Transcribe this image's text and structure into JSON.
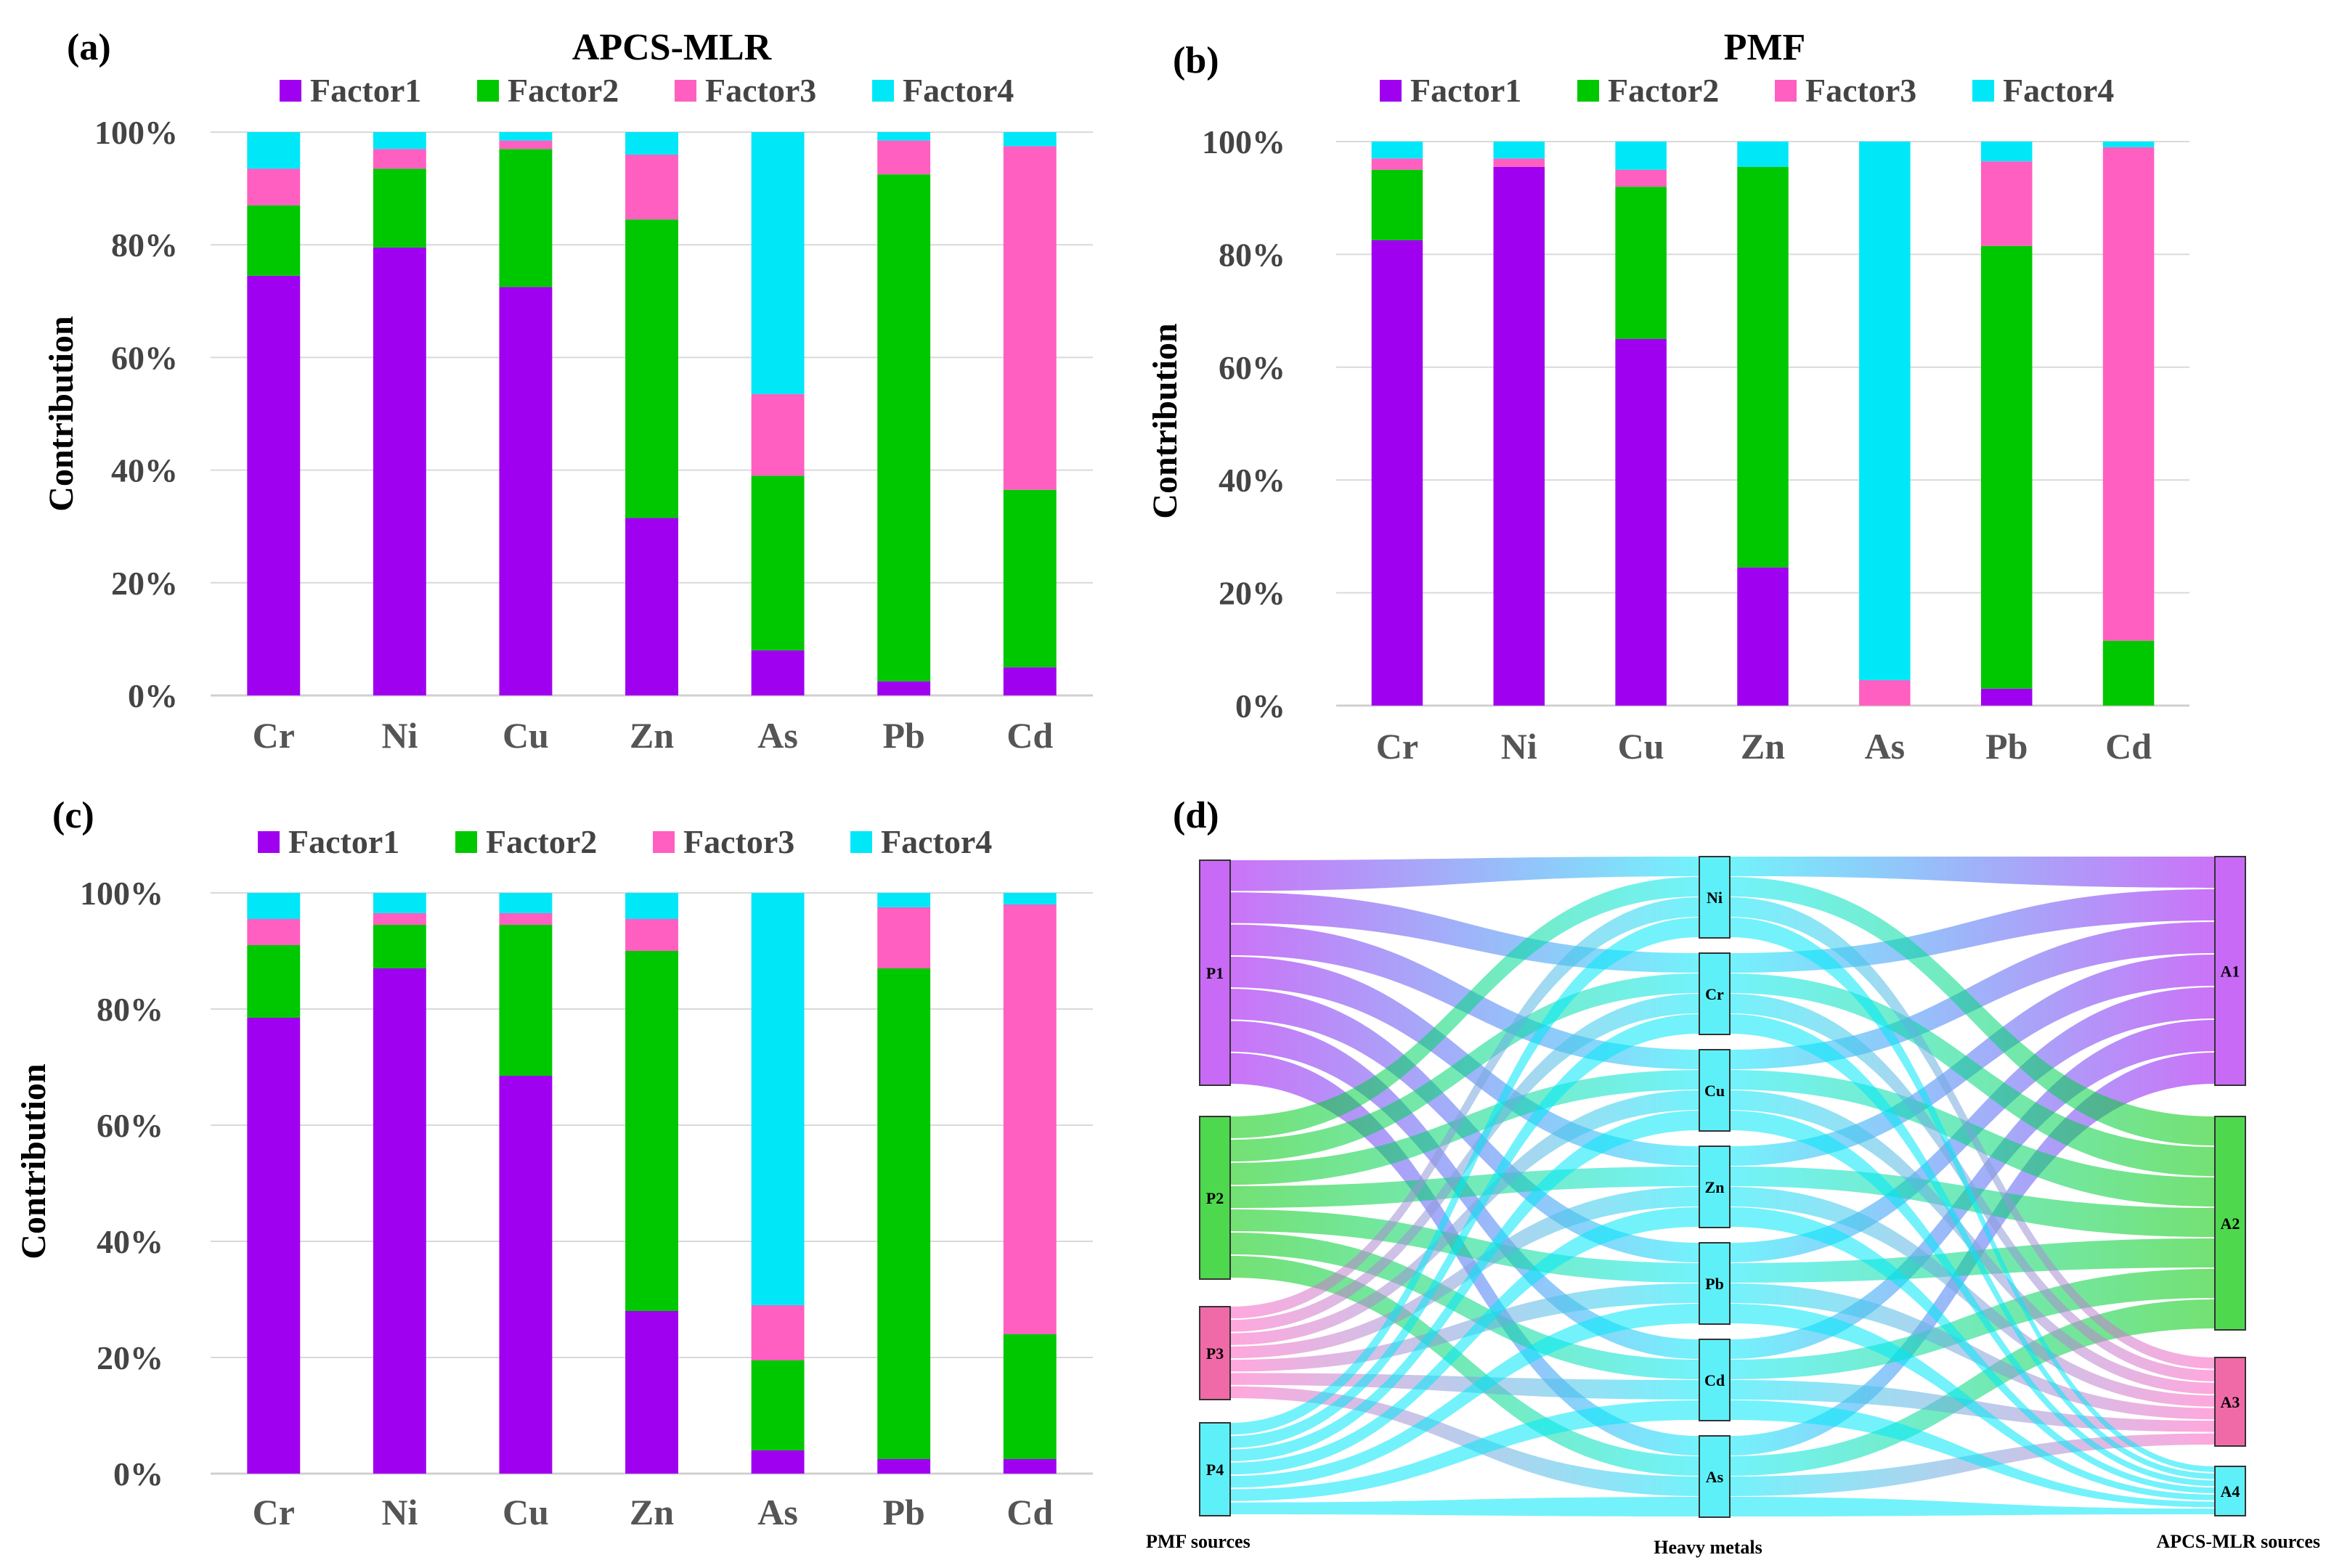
{
  "colors": {
    "Factor1": "#a000f0",
    "Factor2": "#00c800",
    "Factor3": "#ff5fc0",
    "Factor4": "#00e8f8"
  },
  "chart_data": [
    {
      "panel_label": "(a)",
      "type": "bar",
      "stacked": true,
      "title": "APCS-MLR",
      "ylabel": "Contribution",
      "ylim": [
        0,
        100
      ],
      "yticks": [
        "0%",
        "20%",
        "40%",
        "60%",
        "80%",
        "100%"
      ],
      "categories": [
        "Cr",
        "Ni",
        "Cu",
        "Zn",
        "As",
        "Pb",
        "Cd"
      ],
      "legend_position": "top",
      "series": [
        {
          "name": "Factor1",
          "values": [
            74.5,
            79.5,
            72.5,
            31.5,
            8,
            2.5,
            5
          ]
        },
        {
          "name": "Factor2",
          "values": [
            12.5,
            14,
            24.5,
            53,
            31,
            90,
            31.5
          ]
        },
        {
          "name": "Factor3",
          "values": [
            6.5,
            3.5,
            1.5,
            11.5,
            14.5,
            6,
            61
          ]
        },
        {
          "name": "Factor4",
          "values": [
            6.5,
            3,
            1.5,
            4,
            46.5,
            1.5,
            2.5
          ]
        }
      ]
    },
    {
      "panel_label": "(b)",
      "type": "bar",
      "stacked": true,
      "title": "PMF",
      "ylabel": "Contribution",
      "ylim": [
        0,
        100
      ],
      "yticks": [
        "0%",
        "20%",
        "40%",
        "60%",
        "80%",
        "100%"
      ],
      "categories": [
        "Cr",
        "Ni",
        "Cu",
        "Zn",
        "As",
        "Pb",
        "Cd"
      ],
      "legend_position": "top",
      "series": [
        {
          "name": "Factor1",
          "values": [
            82.5,
            95.5,
            65,
            24.5,
            0,
            3,
            0
          ]
        },
        {
          "name": "Factor2",
          "values": [
            12.5,
            0,
            27,
            71,
            0,
            78.5,
            11.5
          ]
        },
        {
          "name": "Factor3",
          "values": [
            2,
            1.5,
            3,
            0,
            4.5,
            15,
            87.5
          ]
        },
        {
          "name": "Factor4",
          "values": [
            3,
            3,
            5,
            4.5,
            95.5,
            3.5,
            1
          ]
        }
      ]
    },
    {
      "panel_label": "(c)",
      "type": "bar",
      "stacked": true,
      "title": "",
      "ylabel": "Contribution",
      "ylim": [
        0,
        100
      ],
      "yticks": [
        "0%",
        "20%",
        "40%",
        "60%",
        "80%",
        "100%"
      ],
      "categories": [
        "Cr",
        "Ni",
        "Cu",
        "Zn",
        "As",
        "Pb",
        "Cd"
      ],
      "legend_position": "top",
      "series": [
        {
          "name": "Factor1",
          "values": [
            78.5,
            87,
            68.5,
            28,
            4,
            2.5,
            2.5
          ]
        },
        {
          "name": "Factor2",
          "values": [
            12.5,
            7.5,
            26,
            62,
            15.5,
            84.5,
            21.5
          ]
        },
        {
          "name": "Factor3",
          "values": [
            4.5,
            2,
            2,
            5.5,
            9.5,
            10.5,
            74
          ]
        },
        {
          "name": "Factor4",
          "values": [
            4.5,
            3.5,
            3.5,
            4.5,
            71,
            2.5,
            2
          ]
        }
      ]
    },
    {
      "panel_label": "(d)",
      "type": "sankey",
      "left_axis_label": "PMF sources",
      "middle_axis_label": "Heavy metals",
      "right_axis_label": "APCS-MLR sources",
      "left_nodes": [
        "P1",
        "P2",
        "P3",
        "P4"
      ],
      "middle_nodes": [
        "Ni",
        "Cr",
        "Cu",
        "Zn",
        "Pb",
        "Cd",
        "As"
      ],
      "right_nodes": [
        "A1",
        "A2",
        "A3",
        "A4"
      ]
    }
  ]
}
